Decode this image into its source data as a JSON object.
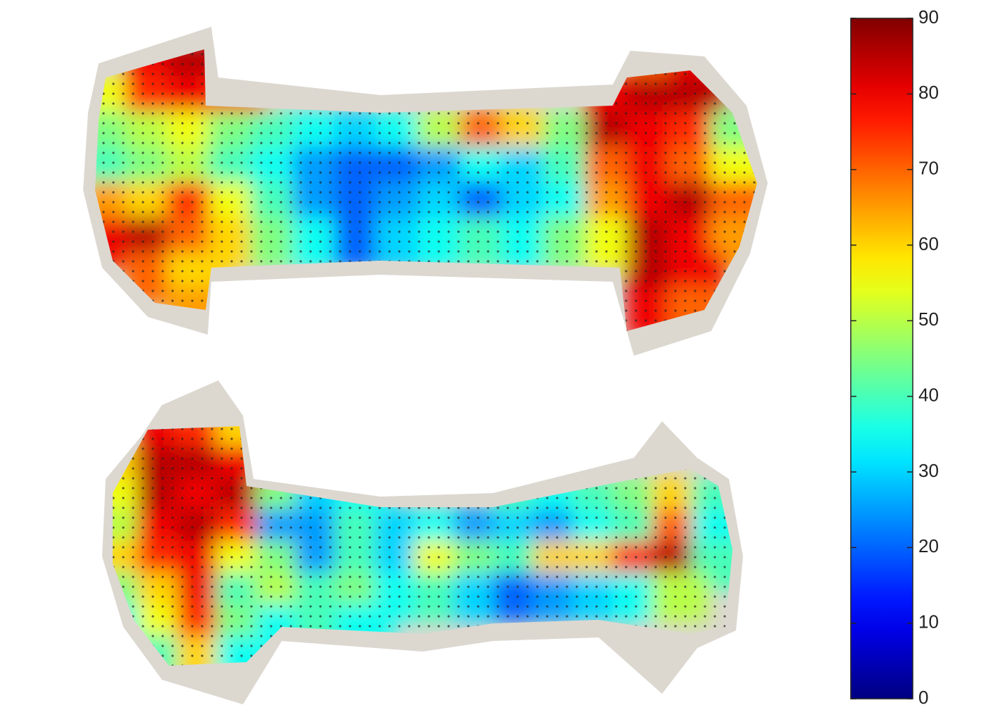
{
  "chart_data": {
    "type": "heatmap",
    "colormap": "jet",
    "panels": [
      {
        "values": [
          [
            null,
            80,
            85,
            null,
            null,
            null,
            null,
            null,
            null,
            null,
            null,
            null,
            null,
            70,
            80,
            null
          ],
          [
            55,
            75,
            80,
            75,
            null,
            null,
            null,
            null,
            null,
            null,
            null,
            null,
            80,
            85,
            85,
            null
          ],
          [
            45,
            50,
            55,
            45,
            40,
            35,
            30,
            35,
            50,
            70,
            60,
            45,
            85,
            80,
            75,
            45
          ],
          [
            40,
            45,
            50,
            40,
            35,
            25,
            20,
            20,
            25,
            35,
            30,
            40,
            70,
            80,
            70,
            55
          ],
          [
            65,
            60,
            75,
            55,
            40,
            25,
            20,
            25,
            30,
            20,
            30,
            35,
            65,
            80,
            85,
            70
          ],
          [
            80,
            85,
            70,
            60,
            45,
            35,
            20,
            30,
            35,
            40,
            35,
            45,
            55,
            85,
            80,
            65
          ],
          [
            null,
            70,
            60,
            null,
            null,
            null,
            null,
            null,
            null,
            null,
            null,
            null,
            null,
            85,
            80,
            null
          ],
          [
            null,
            null,
            65,
            null,
            null,
            null,
            null,
            null,
            null,
            null,
            null,
            null,
            null,
            80,
            70,
            null
          ]
        ]
      },
      {
        "values": [
          [
            null,
            80,
            75,
            60,
            null,
            null,
            null,
            null,
            null,
            null,
            null,
            null,
            null,
            null,
            null,
            null
          ],
          [
            60,
            85,
            85,
            80,
            null,
            null,
            null,
            null,
            null,
            null,
            null,
            null,
            null,
            null,
            null,
            null
          ],
          [
            55,
            85,
            80,
            85,
            45,
            30,
            35,
            null,
            null,
            null,
            40,
            35,
            40,
            45,
            60,
            40
          ],
          [
            50,
            80,
            85,
            75,
            25,
            25,
            40,
            30,
            35,
            25,
            30,
            25,
            35,
            40,
            70,
            35
          ],
          [
            60,
            75,
            80,
            55,
            45,
            25,
            40,
            30,
            55,
            45,
            40,
            60,
            60,
            75,
            85,
            40
          ],
          [
            45,
            60,
            80,
            40,
            50,
            40,
            45,
            35,
            40,
            30,
            20,
            25,
            30,
            35,
            50,
            null
          ],
          [
            35,
            55,
            75,
            45,
            35,
            40,
            35,
            null,
            null,
            null,
            null,
            null,
            null,
            null,
            null,
            null
          ],
          [
            null,
            40,
            60,
            35,
            null,
            null,
            null,
            null,
            null,
            null,
            null,
            null,
            null,
            null,
            null,
            null
          ]
        ]
      }
    ],
    "colorbar": {
      "lim": [
        0,
        90
      ],
      "ticks": [
        0,
        10,
        20,
        30,
        40,
        50,
        60,
        70,
        80,
        90
      ]
    }
  }
}
